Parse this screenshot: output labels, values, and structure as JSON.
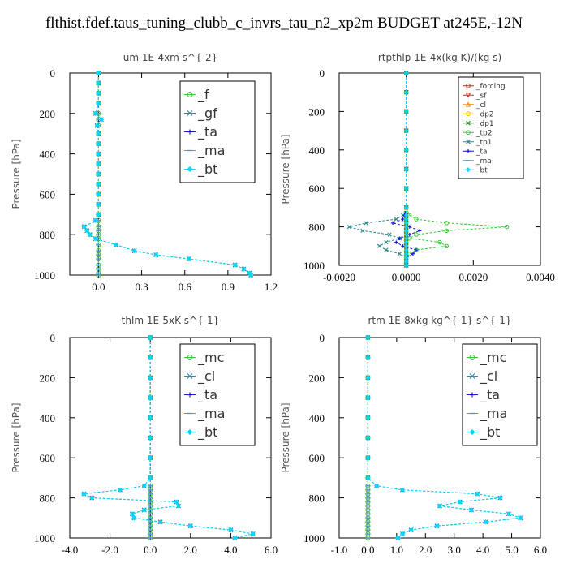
{
  "title": "flthist.fdef.taus_tuning_clubb_c_invrs_tau_n2_xp2m  BUDGET at245E,-12N",
  "chart_data": [
    {
      "type": "line",
      "title": "um  1E-4xm s^{-2}",
      "ylabel": "Pressure [hPa]",
      "xlim": [
        -0.2,
        1.2
      ],
      "ylim": [
        1000,
        0
      ],
      "xticks": [
        "0.0",
        "0.3",
        "0.6",
        "0.9",
        "1.2"
      ],
      "xtick_values": [
        0,
        0.3,
        0.6,
        0.9,
        1.2
      ],
      "yticks": [
        "0",
        "200",
        "400",
        "600",
        "800",
        "1000"
      ],
      "ytick_values": [
        0,
        200,
        400,
        600,
        800,
        1000
      ],
      "legend_position": "top-right",
      "legend_font": 16,
      "y": [
        0,
        50,
        100,
        150,
        200,
        230,
        260,
        300,
        350,
        400,
        450,
        500,
        550,
        600,
        650,
        700,
        730,
        760,
        780,
        800,
        820,
        850,
        880,
        900,
        920,
        950,
        970,
        990,
        1000
      ],
      "series": [
        {
          "name": "_f",
          "color": "#33cc33",
          "marker": "circle",
          "x": [
            0,
            0,
            0,
            0,
            0,
            0,
            0,
            0,
            0,
            0,
            0,
            0,
            0,
            0,
            0,
            0,
            0,
            0,
            0,
            0,
            0,
            0,
            0,
            0,
            0,
            0,
            0,
            0,
            0
          ]
        },
        {
          "name": "_gf",
          "color": "#2e8b8b",
          "marker": "x",
          "x": [
            0,
            0,
            0,
            0,
            -0.02,
            0.02,
            -0.01,
            0,
            0,
            0,
            0,
            0,
            0,
            0,
            0,
            0,
            -0.02,
            -0.1,
            -0.08,
            -0.06,
            -0.02,
            0.12,
            0.25,
            0.4,
            0.63,
            0.95,
            1.01,
            1.05,
            1.06
          ]
        },
        {
          "name": "_ta",
          "color": "#1a1acc",
          "marker": "plus",
          "x": [
            0,
            0,
            0,
            0,
            0,
            0,
            0,
            0,
            0,
            0,
            0,
            0,
            0,
            0,
            0,
            0,
            0,
            0,
            0,
            0,
            0,
            0,
            0,
            0,
            0,
            0,
            0,
            0,
            0
          ]
        },
        {
          "name": "_ma",
          "color": "#4a9fd6",
          "marker": "dash",
          "x": [
            0,
            0,
            0,
            0,
            0,
            0,
            0,
            0,
            0,
            0,
            0,
            0,
            0,
            0,
            0,
            0,
            0,
            0,
            0,
            0,
            0,
            0,
            0,
            0,
            0,
            0,
            0,
            0,
            0
          ]
        },
        {
          "name": "_bt",
          "color": "#00d8ff",
          "marker": "diamond",
          "x": [
            0,
            0,
            0,
            0,
            -0.02,
            0.02,
            -0.01,
            0,
            0,
            0,
            0,
            0,
            0,
            0,
            0,
            0,
            -0.02,
            -0.1,
            -0.08,
            -0.06,
            -0.02,
            0.12,
            0.25,
            0.4,
            0.63,
            0.95,
            1.01,
            1.05,
            1.06
          ]
        }
      ]
    },
    {
      "type": "line",
      "title": "rtpthlp  1E-4x(kg K)/(kg s)",
      "ylabel": "Pressure [hPa]",
      "xlim": [
        -0.002,
        0.004
      ],
      "ylim": [
        1000,
        0
      ],
      "xticks": [
        "-0.0020",
        "0.0000",
        "0.0020",
        "0.0040"
      ],
      "xtick_values": [
        -0.002,
        0,
        0.002,
        0.004
      ],
      "yticks": [
        "0",
        "200",
        "400",
        "600",
        "800",
        "1000"
      ],
      "ytick_values": [
        0,
        200,
        400,
        600,
        800,
        1000
      ],
      "legend_position": "top-right",
      "legend_font": 9,
      "y": [
        0,
        100,
        200,
        300,
        400,
        500,
        600,
        700,
        740,
        760,
        780,
        800,
        820,
        840,
        860,
        880,
        900,
        920,
        940,
        960,
        980,
        1000
      ],
      "series": [
        {
          "name": "_forcing",
          "color": "#e02020",
          "marker": "circle",
          "x": [
            0,
            0,
            0,
            0,
            0,
            0,
            0,
            0,
            0,
            0,
            0,
            0,
            0,
            0,
            0,
            0,
            0,
            0,
            0,
            0,
            0,
            0
          ]
        },
        {
          "name": "_sf",
          "color": "#e02020",
          "marker": "tri-down",
          "x": [
            0,
            0,
            0,
            0,
            0,
            0,
            0,
            0,
            0,
            0,
            0,
            0,
            0,
            0,
            0,
            0,
            0,
            0,
            0,
            0,
            0,
            0
          ]
        },
        {
          "name": "_cl",
          "color": "#ff8c00",
          "marker": "tri-up",
          "x": [
            0,
            0,
            0,
            0,
            0,
            0,
            0,
            0,
            0,
            0,
            0,
            0,
            0,
            0,
            0,
            0,
            0,
            0,
            0,
            0,
            0,
            0
          ]
        },
        {
          "name": "_dp2",
          "color": "#e6c000",
          "marker": "circle",
          "x": [
            0,
            0,
            0,
            0,
            0,
            0,
            0,
            0,
            0,
            0,
            0,
            0,
            0,
            0,
            0,
            0,
            0,
            0,
            0,
            0,
            0,
            0
          ]
        },
        {
          "name": "_dp1",
          "color": "#228b22",
          "marker": "x",
          "x": [
            0,
            0,
            0,
            0,
            0,
            0,
            0,
            0,
            0,
            0,
            0,
            0,
            0,
            0,
            0,
            0,
            0,
            0,
            0,
            0,
            0,
            0
          ]
        },
        {
          "name": "_tp2",
          "color": "#33cc33",
          "marker": "circle",
          "x": [
            0,
            0,
            0,
            0,
            0,
            0,
            0,
            0,
            0.0001,
            0.0003,
            0.0012,
            0.003,
            0.0012,
            0.0003,
            0.0001,
            0.001,
            0.0012,
            0.0003,
            0.0001,
            0,
            0,
            0
          ]
        },
        {
          "name": "_tp1",
          "color": "#2e8b8b",
          "marker": "x",
          "x": [
            0,
            0,
            0,
            0,
            0,
            0,
            0,
            0,
            -0.0001,
            -0.0003,
            -0.0012,
            -0.0017,
            -0.0013,
            -0.0005,
            -0.0002,
            -0.0006,
            -0.0008,
            -0.0006,
            -0.0002,
            0,
            0,
            0
          ]
        },
        {
          "name": "_ta",
          "color": "#1a1acc",
          "marker": "plus",
          "x": [
            0,
            0,
            0,
            0,
            0,
            0,
            0,
            0,
            -5e-05,
            -0.0001,
            -0.0004,
            0.0001,
            0.0004,
            0.0001,
            -0.0002,
            -0.0003,
            -0.0001,
            0.0003,
            0.0002,
            0,
            0,
            0
          ]
        },
        {
          "name": "_ma",
          "color": "#4a9fd6",
          "marker": "dash",
          "x": [
            0,
            0,
            0,
            0,
            0,
            0,
            0,
            0,
            0,
            0,
            0,
            0,
            0,
            0,
            0,
            0,
            0,
            0,
            0,
            0,
            0,
            0
          ]
        },
        {
          "name": "_bt",
          "color": "#00d8ff",
          "marker": "diamond",
          "x": [
            0,
            0,
            0,
            0,
            0,
            0,
            0,
            0,
            0,
            0,
            0,
            0,
            0,
            0,
            0,
            0,
            0,
            0,
            0,
            0,
            0,
            0
          ]
        }
      ]
    },
    {
      "type": "line",
      "title": "thlm  1E-5xK s^{-1}",
      "ylabel": "Pressure [hPa]",
      "xlim": [
        -4,
        6
      ],
      "ylim": [
        1000,
        0
      ],
      "xticks": [
        "-4.0",
        "-2.0",
        "0.0",
        "2.0",
        "4.0",
        "6.0"
      ],
      "xtick_values": [
        -4,
        -2,
        0,
        2,
        4,
        6
      ],
      "yticks": [
        "0",
        "200",
        "400",
        "600",
        "800",
        "1000"
      ],
      "ytick_values": [
        0,
        200,
        400,
        600,
        800,
        1000
      ],
      "legend_position": "top-right",
      "legend_font": 16,
      "y": [
        0,
        100,
        200,
        300,
        400,
        500,
        600,
        700,
        740,
        760,
        780,
        800,
        820,
        840,
        860,
        880,
        900,
        920,
        940,
        960,
        980,
        1000
      ],
      "series": [
        {
          "name": "_mc",
          "color": "#33cc33",
          "marker": "circle",
          "x": [
            0,
            0,
            0,
            0,
            0,
            0,
            0,
            0,
            0,
            0,
            0,
            0,
            0,
            0,
            0,
            0,
            0,
            0,
            0,
            0,
            0,
            0
          ]
        },
        {
          "name": "_cl",
          "color": "#2e8bc0",
          "marker": "x",
          "x": [
            0,
            0,
            0,
            0,
            0,
            0,
            0,
            0,
            -0.3,
            -1.5,
            -3.3,
            -2.9,
            1.3,
            1.4,
            -0.3,
            -0.9,
            -0.8,
            0.5,
            2.0,
            4.0,
            5.1,
            4.2
          ]
        },
        {
          "name": "_ta",
          "color": "#1a1acc",
          "marker": "plus",
          "x": [
            0,
            0,
            0,
            0,
            0,
            0,
            0,
            0,
            0,
            0,
            0,
            0,
            0,
            0,
            0,
            0,
            0,
            0,
            0,
            0,
            0,
            0
          ]
        },
        {
          "name": "_ma",
          "color": "#4a9fd6",
          "marker": "dash",
          "x": [
            0,
            0,
            0,
            0,
            0,
            0,
            0,
            0,
            0,
            0,
            0,
            0,
            0,
            0,
            0,
            0,
            0,
            0,
            0,
            0,
            0,
            0
          ]
        },
        {
          "name": "_bt",
          "color": "#00d8ff",
          "marker": "diamond",
          "x": [
            0,
            0,
            0,
            0,
            0,
            0,
            0,
            0,
            -0.3,
            -1.5,
            -3.3,
            -2.9,
            1.3,
            1.4,
            -0.3,
            -0.9,
            -0.8,
            0.5,
            2.0,
            4.0,
            5.1,
            4.2
          ]
        }
      ]
    },
    {
      "type": "line",
      "title": "rtm  1E-8xkg kg^{-1} s^{-1}",
      "ylabel": "Pressure [hPa]",
      "xlim": [
        -1,
        6
      ],
      "ylim": [
        1000,
        0
      ],
      "xticks": [
        "-1.0",
        "0.0",
        "1.0",
        "2.0",
        "3.0",
        "4.0",
        "5.0",
        "6.0"
      ],
      "xtick_values": [
        -1,
        0,
        1,
        2,
        3,
        4,
        5,
        6
      ],
      "yticks": [
        "0",
        "200",
        "400",
        "600",
        "800",
        "1000"
      ],
      "ytick_values": [
        0,
        200,
        400,
        600,
        800,
        1000
      ],
      "legend_position": "top-right",
      "legend_font": 16,
      "y": [
        0,
        100,
        200,
        300,
        400,
        500,
        600,
        700,
        740,
        760,
        780,
        800,
        820,
        840,
        860,
        880,
        900,
        920,
        940,
        960,
        980,
        1000
      ],
      "series": [
        {
          "name": "_mc",
          "color": "#33cc33",
          "marker": "circle",
          "x": [
            0,
            0,
            0,
            0,
            0,
            0,
            0,
            0,
            0,
            0,
            0,
            0,
            0,
            0,
            0,
            0,
            0,
            0,
            0,
            0,
            0,
            0
          ]
        },
        {
          "name": "_cl",
          "color": "#2e8bc0",
          "marker": "x",
          "x": [
            0,
            0,
            0,
            0,
            0,
            0,
            0,
            0,
            0.3,
            1.2,
            3.8,
            4.6,
            3.2,
            2.5,
            3.6,
            4.9,
            5.3,
            4.1,
            2.4,
            1.5,
            1.2,
            1.05
          ]
        },
        {
          "name": "_ta",
          "color": "#1a1acc",
          "marker": "plus",
          "x": [
            0,
            0,
            0,
            0,
            0,
            0,
            0,
            0,
            0,
            0,
            0,
            0,
            0,
            0,
            0,
            0,
            0,
            0,
            0,
            0,
            0,
            0
          ]
        },
        {
          "name": "_ma",
          "color": "#4a9fd6",
          "marker": "dash",
          "x": [
            0,
            0,
            0,
            0,
            0,
            0,
            0,
            0,
            0,
            0,
            0,
            0,
            0,
            0,
            0,
            0,
            0,
            0,
            0,
            0,
            0,
            0
          ]
        },
        {
          "name": "_bt",
          "color": "#00d8ff",
          "marker": "diamond",
          "x": [
            0,
            0,
            0,
            0,
            0,
            0,
            0,
            0,
            0.3,
            1.2,
            3.8,
            4.6,
            3.2,
            2.5,
            3.6,
            4.9,
            5.3,
            4.1,
            2.4,
            1.5,
            1.2,
            1.05
          ]
        }
      ]
    }
  ]
}
